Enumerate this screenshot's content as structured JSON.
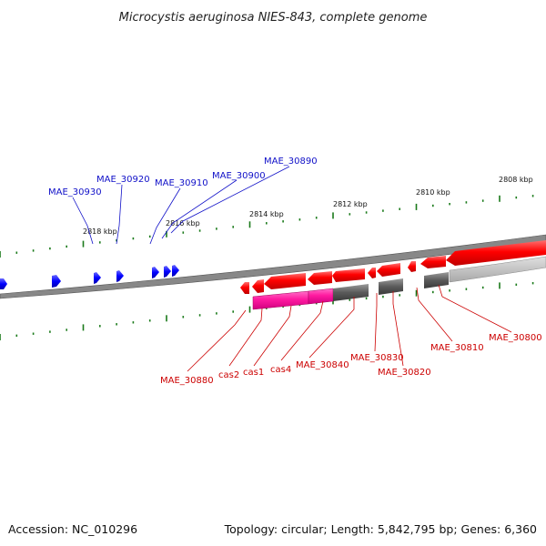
{
  "title": "Microcystis aeruginosa NIES-843, complete genome",
  "accession": "Accession: NC_010296",
  "summary": "Topology: circular; Length: 5,842,795 bp; Genes: 6,360",
  "kbp_labels": [
    "2818 kbp",
    "2816 kbp",
    "2814 kbp",
    "2812 kbp",
    "2810 kbp",
    "2808 kbp"
  ],
  "top_labels": [
    "MAE_30930",
    "MAE_30920",
    "MAE_30910",
    "MAE_30900",
    "MAE_30890"
  ],
  "bottom_labels": [
    "MAE_30880",
    "cas2",
    "cas1",
    "cas4",
    "MAE_30840",
    "MAE_30830",
    "MAE_30820",
    "MAE_30810",
    "MAE_30800"
  ],
  "colors": {
    "forward_gene": "#ff0000",
    "reverse_gene": "#0000ff",
    "cas_gene": "#ff1493",
    "grey_feature": "#555555",
    "tick": "#1a7a1a",
    "label_blue": "#1010c8",
    "label_red": "#cc0000"
  }
}
